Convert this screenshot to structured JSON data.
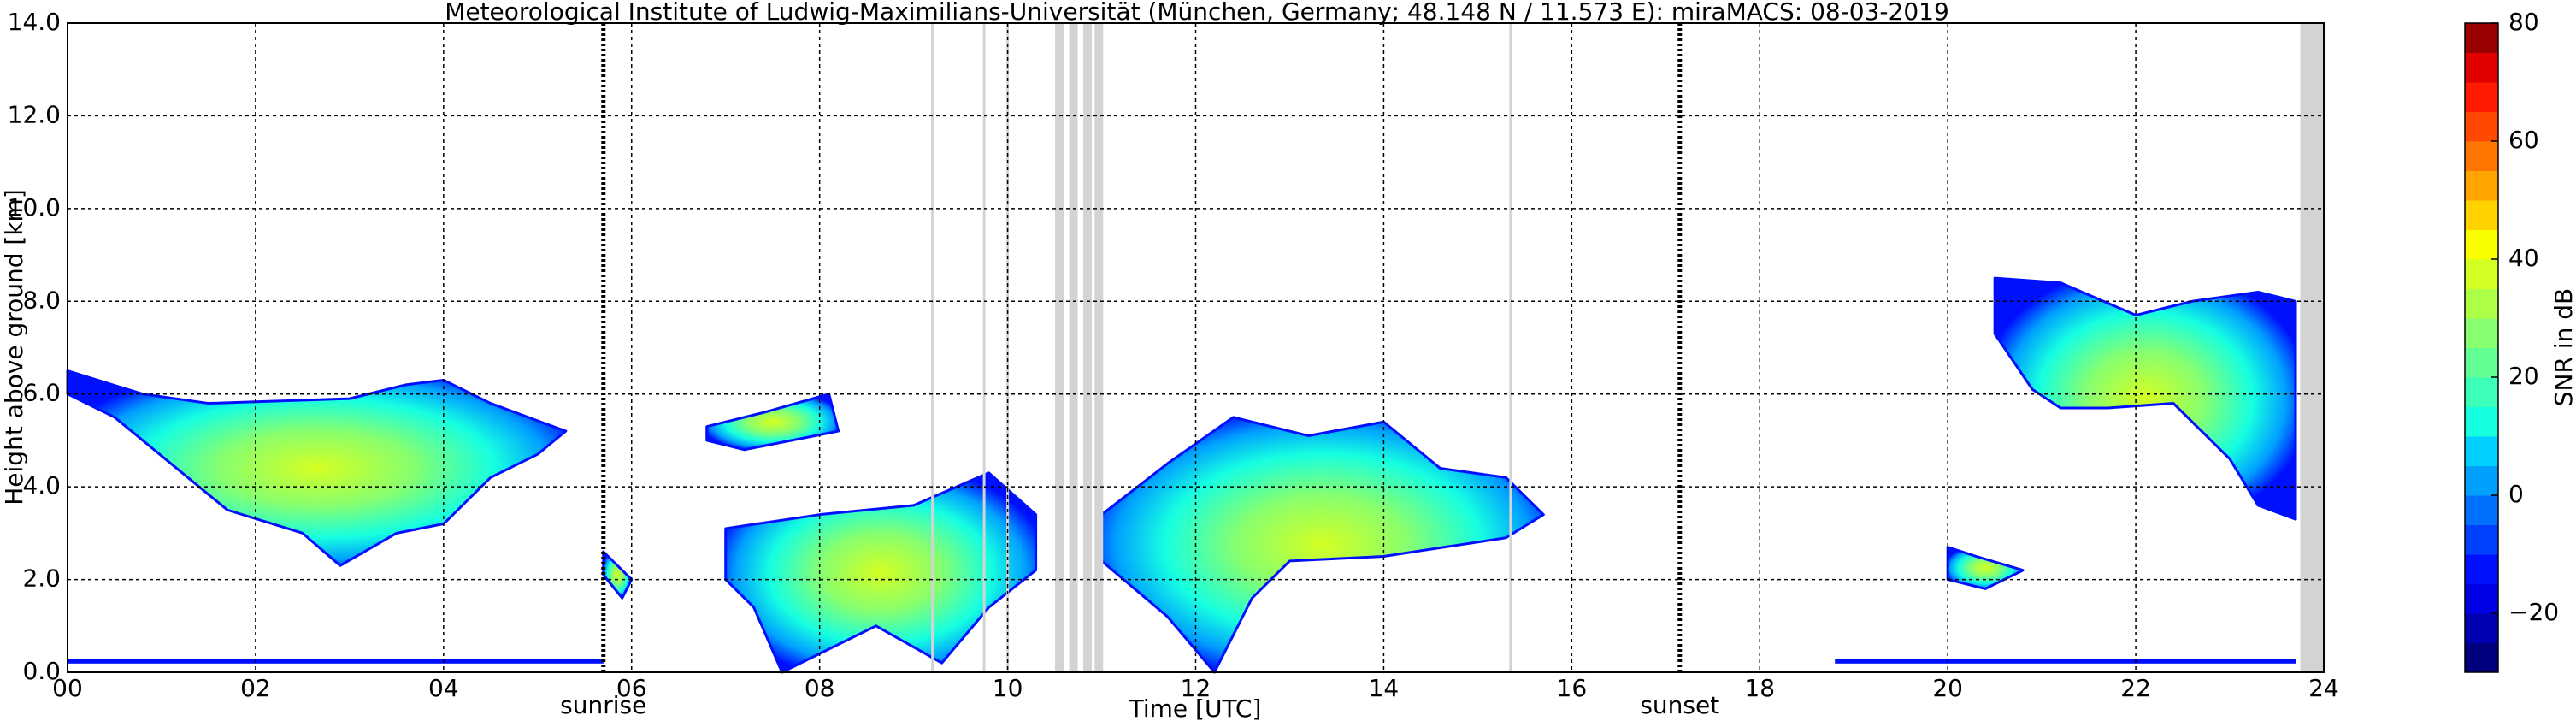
{
  "chart_data": {
    "type": "heatmap",
    "title": "Meteorological Institute of Ludwig-Maximilians-Universität (München, Germany; 48.148 N / 11.573 E):    miraMACS: 08-03-2019",
    "x_label": "Time [UTC]",
    "y_label": "Height above ground [km]",
    "xlim": [
      0,
      24
    ],
    "ylim": [
      0,
      14
    ],
    "xticks": [
      {
        "value": 0,
        "label": "00"
      },
      {
        "value": 2,
        "label": "02"
      },
      {
        "value": 4,
        "label": "04"
      },
      {
        "value": 6,
        "label": "06"
      },
      {
        "value": 8,
        "label": "08"
      },
      {
        "value": 10,
        "label": "10"
      },
      {
        "value": 12,
        "label": "12"
      },
      {
        "value": 14,
        "label": "14"
      },
      {
        "value": 16,
        "label": "16"
      },
      {
        "value": 18,
        "label": "18"
      },
      {
        "value": 20,
        "label": "20"
      },
      {
        "value": 22,
        "label": "22"
      },
      {
        "value": 24,
        "label": "24"
      }
    ],
    "yticks": [
      {
        "value": 0,
        "label": "0.0"
      },
      {
        "value": 2,
        "label": "2.0"
      },
      {
        "value": 4,
        "label": "4.0"
      },
      {
        "value": 6,
        "label": "6.0"
      },
      {
        "value": 8,
        "label": "8.0"
      },
      {
        "value": 10,
        "label": "10.0"
      },
      {
        "value": 12,
        "label": "12.0"
      },
      {
        "value": 14,
        "label": "14.0"
      }
    ],
    "grid": true,
    "annotations": [
      {
        "text": "sunrise",
        "x": 5.7
      },
      {
        "text": "sunset",
        "x": 17.15
      }
    ],
    "colorbar": {
      "label": "SNR in dB",
      "lim": [
        -30,
        80
      ],
      "ticks": [
        {
          "value": -20,
          "label": "−20"
        },
        0,
        20,
        40,
        60,
        80
      ],
      "colors": [
        "#00007f",
        "#0000b2",
        "#0000e5",
        "#0010ff",
        "#0040ff",
        "#0070ff",
        "#00a0ff",
        "#00d0ff",
        "#16ffe1",
        "#3cffba",
        "#62ff94",
        "#88ff6e",
        "#aeff48",
        "#d4ff22",
        "#faff00",
        "#ffd200",
        "#ffa400",
        "#ff7700",
        "#ff4900",
        "#ff1b00",
        "#e00000",
        "#9a0000"
      ]
    }
  }
}
